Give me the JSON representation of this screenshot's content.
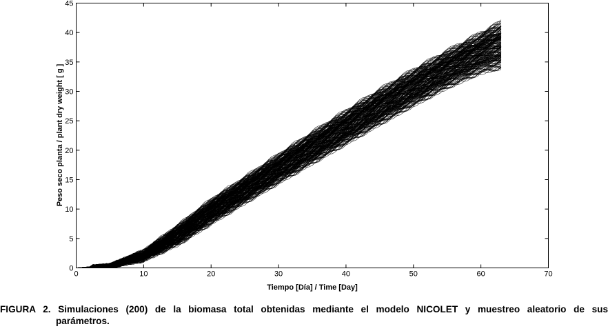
{
  "chart_data": {
    "type": "line",
    "title": "",
    "xlabel": "Tiempo [Día] / Time [Day]",
    "ylabel": "Peso seco planta / plant dry weight [ g ]",
    "xlim": [
      0,
      70
    ],
    "ylim": [
      0,
      45
    ],
    "xticks": [
      0,
      10,
      20,
      30,
      40,
      50,
      60,
      70
    ],
    "yticks": [
      0,
      5,
      10,
      15,
      20,
      25,
      30,
      35,
      40,
      45
    ],
    "grid": false,
    "n_series": 200,
    "series_color": "#000000",
    "x": [
      0,
      5,
      10,
      15,
      20,
      25,
      30,
      35,
      40,
      45,
      50,
      55,
      60,
      63
    ],
    "series_envelope": {
      "upper": [
        0,
        0.5,
        3.0,
        7.3,
        11.8,
        15.6,
        19.5,
        23.3,
        27.0,
        30.6,
        34.0,
        37.2,
        40.3,
        42.2
      ],
      "median": [
        0,
        0.3,
        2.0,
        5.6,
        9.8,
        13.6,
        17.4,
        21.0,
        24.5,
        27.8,
        31.0,
        34.0,
        37.0,
        38.3
      ],
      "lower": [
        0,
        0.2,
        1.2,
        3.8,
        7.4,
        10.9,
        14.3,
        17.6,
        20.9,
        24.2,
        27.4,
        30.4,
        32.9,
        33.7
      ]
    }
  },
  "caption": {
    "figure_number": "FIGURA 2.",
    "line1": "Simulaciones (200) de la biomasa total obtenidas mediante el modelo NICOLET y muestreo aleatorio de sus",
    "line2": "parámetros."
  }
}
